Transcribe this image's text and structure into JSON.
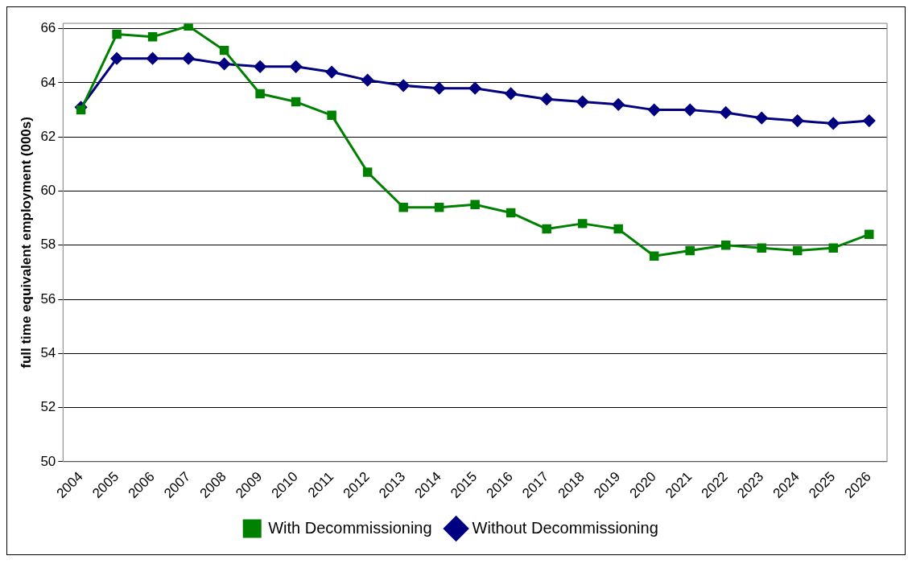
{
  "chart_data": {
    "type": "line",
    "ylabel": "full time equivalent employment (000s)",
    "categories": [
      "2004",
      "2005",
      "2006",
      "2007",
      "2008",
      "2009",
      "2010",
      "2011",
      "2012",
      "2013",
      "2014",
      "2015",
      "2016",
      "2017",
      "2018",
      "2019",
      "2020",
      "2021",
      "2022",
      "2023",
      "2024",
      "2025",
      "2026"
    ],
    "series": [
      {
        "name": "Without Decommissioning",
        "color": "#000080",
        "marker": "diamond",
        "values": [
          63.1,
          64.9,
          64.9,
          64.9,
          64.7,
          64.6,
          64.6,
          64.4,
          64.1,
          63.9,
          63.8,
          63.8,
          63.6,
          63.4,
          63.3,
          63.2,
          63.0,
          63.0,
          62.9,
          62.7,
          62.6,
          62.5,
          62.6
        ]
      },
      {
        "name": "With Decommissioning",
        "color": "#008000",
        "marker": "square",
        "values": [
          63.0,
          65.8,
          65.7,
          66.1,
          65.2,
          63.6,
          63.3,
          62.8,
          60.7,
          59.4,
          59.4,
          59.5,
          59.2,
          58.6,
          58.8,
          58.6,
          57.6,
          57.8,
          58.0,
          57.9,
          57.8,
          57.9,
          58.4
        ]
      }
    ],
    "ylim": [
      50,
      66.2
    ],
    "yticks": [
      50,
      52,
      54,
      56,
      58,
      60,
      62,
      64,
      66
    ],
    "grid": "y",
    "legend": "bottom",
    "line_style": "solid"
  }
}
